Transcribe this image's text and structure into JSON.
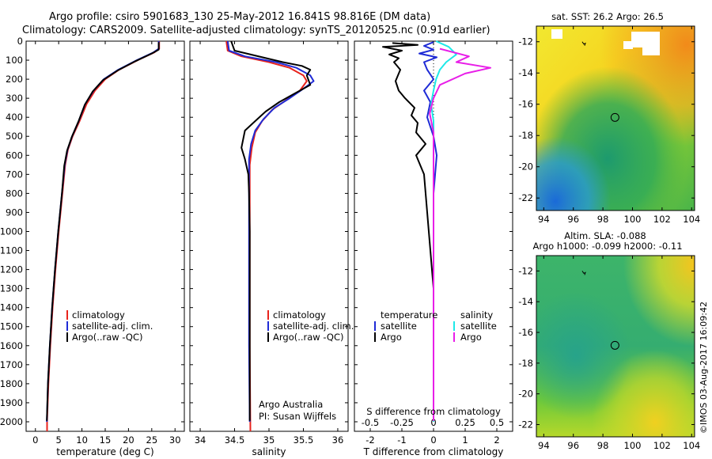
{
  "header": {
    "line1": "Argo profile: csiro 5901683_130 25-May-2012 16.841S 98.816E (DM data)",
    "line2": "Climatology: CARS2009. Satellite-adjusted climatology: synTS_20120525.nc (0.91d earlier)"
  },
  "colors": {
    "climatology": "#e8231c",
    "satellite": "#1f2bd6",
    "argo": "#000000",
    "salinity_satellite": "#1ee8e8",
    "salinity_argo": "#e81ee8",
    "marker": "#000000"
  },
  "chart_data": [
    {
      "type": "line",
      "name": "temperature-panel",
      "xlabel": "temperature (deg C)",
      "ylabel": "",
      "xlim": [
        -2,
        32
      ],
      "ylim": [
        2050,
        0
      ],
      "xticks": [
        0,
        5,
        10,
        15,
        20,
        25,
        30
      ],
      "xtick_labels": [
        "0",
        "5",
        "10",
        "15",
        "20",
        "25",
        "30"
      ],
      "yticks": [
        0,
        100,
        200,
        300,
        400,
        500,
        600,
        700,
        800,
        900,
        1000,
        1100,
        1200,
        1300,
        1400,
        1500,
        1600,
        1700,
        1800,
        1900,
        2000
      ],
      "ytick_labels": [
        "0",
        "100",
        "200",
        "300",
        "400",
        "500",
        "600",
        "700",
        "800",
        "900",
        "1000",
        "1100",
        "1200",
        "1300",
        "1400",
        "1500",
        "1600",
        "1700",
        "1800",
        "1900",
        "2000"
      ],
      "legend": [
        "climatology",
        "satellite-adj. clim.",
        "Argo(..raw -QC)"
      ],
      "series": [
        {
          "name": "climatology",
          "color_key": "climatology",
          "points": [
            [
              26.6,
              0
            ],
            [
              26.6,
              40
            ],
            [
              25.5,
              60
            ],
            [
              22,
              100
            ],
            [
              18,
              150
            ],
            [
              15,
              200
            ],
            [
              12.8,
              260
            ],
            [
              11,
              330
            ],
            [
              9.5,
              420
            ],
            [
              8,
              500
            ],
            [
              7,
              570
            ],
            [
              6.4,
              650
            ],
            [
              5.8,
              800
            ],
            [
              5,
              1000
            ],
            [
              4.3,
              1200
            ],
            [
              3.7,
              1400
            ],
            [
              3.2,
              1600
            ],
            [
              2.8,
              1800
            ],
            [
              2.5,
              2000
            ],
            [
              2.5,
              2050
            ]
          ]
        },
        {
          "name": "satellite-adj. clim.",
          "color_key": "satellite",
          "points": [
            [
              26.5,
              0
            ],
            [
              26.5,
              40
            ],
            [
              25.3,
              60
            ],
            [
              21.8,
              100
            ],
            [
              17.8,
              150
            ],
            [
              14.7,
              200
            ],
            [
              12.5,
              260
            ],
            [
              10.7,
              330
            ],
            [
              9.3,
              420
            ],
            [
              7.9,
              500
            ],
            [
              6.9,
              570
            ],
            [
              6.3,
              650
            ],
            [
              5.7,
              800
            ],
            [
              4.9,
              1000
            ],
            [
              4.2,
              1200
            ],
            [
              3.6,
              1400
            ],
            [
              3.1,
              1600
            ],
            [
              2.7,
              1800
            ],
            [
              2.45,
              2000
            ]
          ]
        },
        {
          "name": "Argo(..raw -QC)",
          "color_key": "argo",
          "points": [
            [
              26.5,
              5
            ],
            [
              26.5,
              45
            ],
            [
              25,
              65
            ],
            [
              21.5,
              105
            ],
            [
              17.6,
              155
            ],
            [
              14.5,
              205
            ],
            [
              12.3,
              265
            ],
            [
              10.6,
              335
            ],
            [
              9.2,
              425
            ],
            [
              7.8,
              505
            ],
            [
              6.8,
              575
            ],
            [
              6.2,
              655
            ],
            [
              5.7,
              800
            ],
            [
              4.9,
              1000
            ],
            [
              4.2,
              1200
            ],
            [
              3.6,
              1400
            ],
            [
              3.1,
              1600
            ],
            [
              2.7,
              1800
            ],
            [
              2.45,
              1995
            ]
          ]
        }
      ]
    },
    {
      "type": "line",
      "name": "salinity-panel",
      "xlabel": "salinity",
      "xlim": [
        33.85,
        36.15
      ],
      "ylim": [
        2050,
        0
      ],
      "xticks": [
        34,
        34.5,
        35,
        35.5,
        36
      ],
      "xtick_labels": [
        "34",
        "34.5",
        "35",
        "35.5",
        "36"
      ],
      "legend": [
        "climatology",
        "satellite-adj. clim.",
        "Argo(..raw -QC)"
      ],
      "annotation_lines": [
        "Argo Australia",
        "PI: Susan Wijffels"
      ],
      "series": [
        {
          "name": "climatology",
          "color_key": "climatology",
          "points": [
            [
              34.38,
              0
            ],
            [
              34.4,
              50
            ],
            [
              34.6,
              80
            ],
            [
              35.0,
              110
            ],
            [
              35.3,
              140
            ],
            [
              35.5,
              180
            ],
            [
              35.55,
              210
            ],
            [
              35.45,
              260
            ],
            [
              35.25,
              310
            ],
            [
              35.05,
              360
            ],
            [
              34.9,
              420
            ],
            [
              34.8,
              480
            ],
            [
              34.75,
              560
            ],
            [
              34.72,
              650
            ],
            [
              34.72,
              800
            ],
            [
              34.72,
              1200
            ],
            [
              34.72,
              1600
            ],
            [
              34.73,
              2050
            ]
          ]
        },
        {
          "name": "satellite-adj. clim.",
          "color_key": "satellite",
          "points": [
            [
              34.4,
              0
            ],
            [
              34.42,
              50
            ],
            [
              34.65,
              80
            ],
            [
              35.1,
              110
            ],
            [
              35.4,
              140
            ],
            [
              35.6,
              180
            ],
            [
              35.65,
              210
            ],
            [
              35.5,
              250
            ],
            [
              35.3,
              300
            ],
            [
              35.08,
              350
            ],
            [
              34.92,
              410
            ],
            [
              34.8,
              470
            ],
            [
              34.74,
              540
            ],
            [
              34.71,
              620
            ],
            [
              34.71,
              800
            ],
            [
              34.71,
              1200
            ],
            [
              34.71,
              1600
            ],
            [
              34.72,
              2000
            ]
          ]
        },
        {
          "name": "Argo(..raw -QC)",
          "color_key": "argo",
          "points": [
            [
              34.45,
              0
            ],
            [
              34.5,
              50
            ],
            [
              35.2,
              110
            ],
            [
              35.48,
              130
            ],
            [
              35.6,
              150
            ],
            [
              35.55,
              180
            ],
            [
              35.6,
              230
            ],
            [
              35.4,
              270
            ],
            [
              35.15,
              320
            ],
            [
              34.95,
              370
            ],
            [
              34.8,
              420
            ],
            [
              34.65,
              470
            ],
            [
              34.6,
              560
            ],
            [
              34.65,
              620
            ],
            [
              34.7,
              700
            ],
            [
              34.71,
              800
            ],
            [
              34.72,
              1000
            ],
            [
              34.72,
              1400
            ],
            [
              34.72,
              1800
            ],
            [
              34.72,
              1995
            ]
          ]
        }
      ]
    },
    {
      "type": "line",
      "name": "difference-panel",
      "xlabel_bottom": "T difference from climatology",
      "xlabel_top": "S difference from climatology",
      "xlim": [
        -2.5,
        2.5
      ],
      "ylim": [
        2050,
        0
      ],
      "xticks": [
        -2,
        -1,
        0,
        1,
        2
      ],
      "xtick_labels": [
        "-2",
        "-1",
        "0",
        "1",
        "2"
      ],
      "top_ticks": [
        -0.5,
        -0.25,
        0,
        0.25,
        0.5
      ],
      "top_tick_labels": [
        "-0.5",
        "-0.25",
        "0",
        "0.25",
        "0.5"
      ],
      "s_scale": 4,
      "legend_temperature": {
        "title": "temperature",
        "items": [
          "satellite",
          "Argo"
        ]
      },
      "legend_salinity": {
        "title": "salinity",
        "items": [
          "satellite",
          "Argo"
        ]
      },
      "series": [
        {
          "name": "T satellite",
          "color_key": "satellite",
          "points": [
            [
              0,
              5
            ],
            [
              -0.3,
              25
            ],
            [
              0,
              45
            ],
            [
              -0.45,
              65
            ],
            [
              0.1,
              85
            ],
            [
              -0.3,
              110
            ],
            [
              -0.2,
              150
            ],
            [
              0,
              200
            ],
            [
              -0.3,
              260
            ],
            [
              -0.1,
              320
            ],
            [
              -0.2,
              400
            ],
            [
              0,
              500
            ],
            [
              0.1,
              600
            ],
            [
              0,
              800
            ],
            [
              0,
              1200
            ],
            [
              0,
              1600
            ],
            [
              0,
              2000
            ]
          ]
        },
        {
          "name": "T Argo",
          "color_key": "argo",
          "points": [
            [
              -1.3,
              10
            ],
            [
              -0.5,
              20
            ],
            [
              -1.6,
              30
            ],
            [
              -1.0,
              50
            ],
            [
              -1.4,
              70
            ],
            [
              -1.1,
              90
            ],
            [
              -1.25,
              110
            ],
            [
              -1.05,
              150
            ],
            [
              -1.2,
              210
            ],
            [
              -1.1,
              260
            ],
            [
              -0.9,
              300
            ],
            [
              -0.6,
              350
            ],
            [
              -0.7,
              390
            ],
            [
              -0.5,
              430
            ],
            [
              -0.55,
              480
            ],
            [
              -0.25,
              540
            ],
            [
              -0.55,
              600
            ],
            [
              -0.3,
              700
            ],
            [
              -0.25,
              800
            ],
            [
              -0.2,
              900
            ],
            [
              -0.15,
              1000
            ],
            [
              -0.1,
              1100
            ],
            [
              -0.05,
              1200
            ],
            [
              0,
              1300
            ],
            [
              0,
              1400
            ],
            [
              0,
              1600
            ],
            [
              0,
              1800
            ],
            [
              0,
              1995
            ]
          ]
        },
        {
          "name": "S satellite",
          "color_key": "salinity_satellite",
          "points": [
            [
              0.02,
              0
            ],
            [
              0.12,
              30
            ],
            [
              0.18,
              70
            ],
            [
              0.1,
              110
            ],
            [
              0.05,
              150
            ],
            [
              0.02,
              200
            ],
            [
              0,
              260
            ],
            [
              -0.02,
              330
            ],
            [
              0,
              420
            ],
            [
              0,
              520
            ],
            [
              0,
              700
            ],
            [
              0,
              1000
            ],
            [
              0,
              1400
            ],
            [
              0,
              1800
            ],
            [
              0,
              2000
            ]
          ]
        },
        {
          "name": "S Argo",
          "color_key": "salinity_argo",
          "points": [
            [
              0.05,
              40
            ],
            [
              0.28,
              80
            ],
            [
              0.18,
              110
            ],
            [
              0.45,
              140
            ],
            [
              0.25,
              170
            ],
            [
              0.05,
              230
            ],
            [
              0,
              300
            ],
            [
              -0.03,
              380
            ],
            [
              0,
              480
            ],
            [
              0,
              700
            ],
            [
              0,
              1000
            ],
            [
              0,
              1400
            ],
            [
              0,
              1800
            ],
            [
              0,
              1995
            ]
          ]
        }
      ]
    },
    {
      "type": "heatmap",
      "name": "sst-map",
      "title": "sat. SST: 26.2  Argo: 26.5",
      "xlim": [
        93.5,
        104.2
      ],
      "ylim": [
        -22.8,
        -11
      ],
      "xticks": [
        94,
        96,
        98,
        100,
        102,
        104
      ],
      "xtick_labels": [
        "94",
        "96",
        "98",
        "100",
        "102",
        "104"
      ],
      "yticks": [
        -12,
        -14,
        -16,
        -18,
        -20,
        -22
      ],
      "ytick_labels": [
        "-12",
        "-14",
        "-16",
        "-18",
        "-20",
        "-22"
      ],
      "argo_position": [
        98.816,
        -16.841
      ]
    },
    {
      "type": "heatmap",
      "name": "sla-map",
      "title_lines": [
        "Altim. SLA: -0.088",
        "Argo h1000: -0.099 h2000: -0.11"
      ],
      "xlim": [
        93.5,
        104.2
      ],
      "ylim": [
        -22.8,
        -11
      ],
      "xticks": [
        94,
        96,
        98,
        100,
        102,
        104
      ],
      "xtick_labels": [
        "94",
        "96",
        "98",
        "100",
        "102",
        "104"
      ],
      "yticks": [
        -12,
        -14,
        -16,
        -18,
        -20,
        -22
      ],
      "ytick_labels": [
        "-12",
        "-14",
        "-16",
        "-18",
        "-20",
        "-22"
      ],
      "argo_position": [
        98.816,
        -16.841
      ]
    }
  ],
  "footer": {
    "imos_stamp": "©IMOS 03-Aug-2017 16:09:42"
  }
}
